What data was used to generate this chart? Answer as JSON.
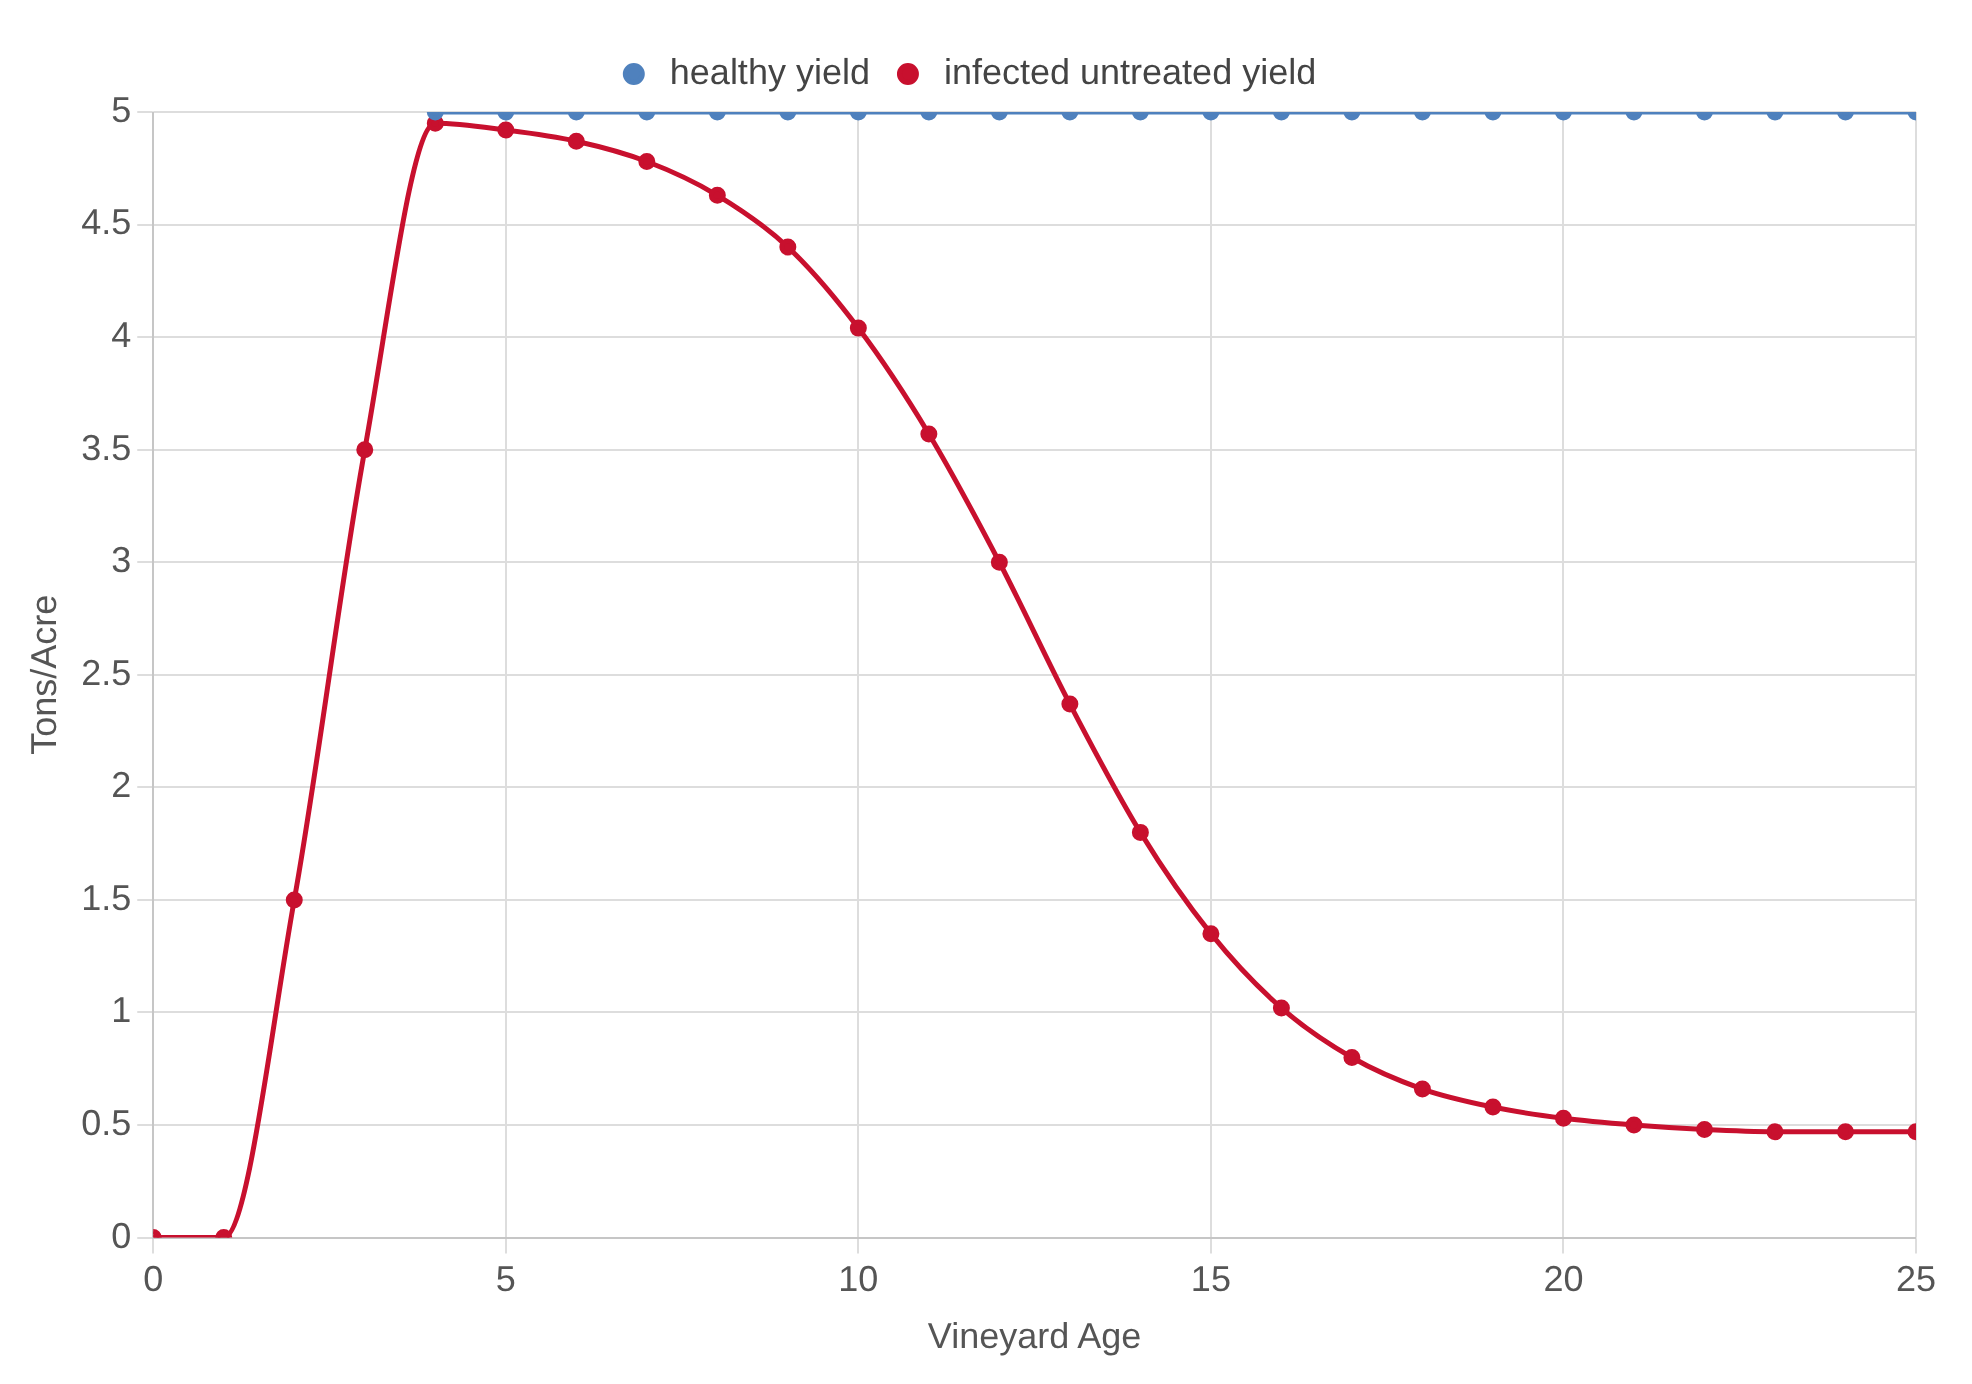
{
  "chart_data": {
    "type": "line",
    "xlabel": "Vineyard Age",
    "ylabel": "Tons/Acre",
    "xlim": [
      0,
      25
    ],
    "xticks": [
      0,
      5,
      10,
      15,
      20,
      25
    ],
    "ylim": [
      0,
      5
    ],
    "yticks": [
      0,
      0.5,
      1,
      1.5,
      2,
      2.5,
      3,
      3.5,
      4,
      4.5,
      5
    ],
    "grid": true,
    "legend": "top",
    "marker": "circle",
    "line_style": "solid",
    "series": [
      {
        "name": "healthy yield",
        "color": "#4f81bd",
        "x": [
          4,
          5,
          6,
          7,
          8,
          9,
          10,
          11,
          12,
          13,
          14,
          15,
          16,
          17,
          18,
          19,
          20,
          21,
          22,
          23,
          24,
          25
        ],
        "values": [
          5,
          5,
          5,
          5,
          5,
          5,
          5,
          5,
          5,
          5,
          5,
          5,
          5,
          5,
          5,
          5,
          5,
          5,
          5,
          5,
          5,
          5
        ]
      },
      {
        "name": "infected untreated yield",
        "color": "#c8102e",
        "x": [
          0,
          1,
          2,
          3,
          4,
          5,
          6,
          7,
          8,
          9,
          10,
          11,
          12,
          13,
          14,
          15,
          16,
          17,
          18,
          19,
          20,
          21,
          22,
          23,
          24,
          25
        ],
        "values": [
          0,
          0,
          1.5,
          3.5,
          4.95,
          4.92,
          4.87,
          4.78,
          4.63,
          4.4,
          4.04,
          3.57,
          3.0,
          2.37,
          1.8,
          1.35,
          1.02,
          0.8,
          0.66,
          0.58,
          0.53,
          0.5,
          0.48,
          0.47,
          0.47,
          0.47
        ]
      }
    ]
  }
}
